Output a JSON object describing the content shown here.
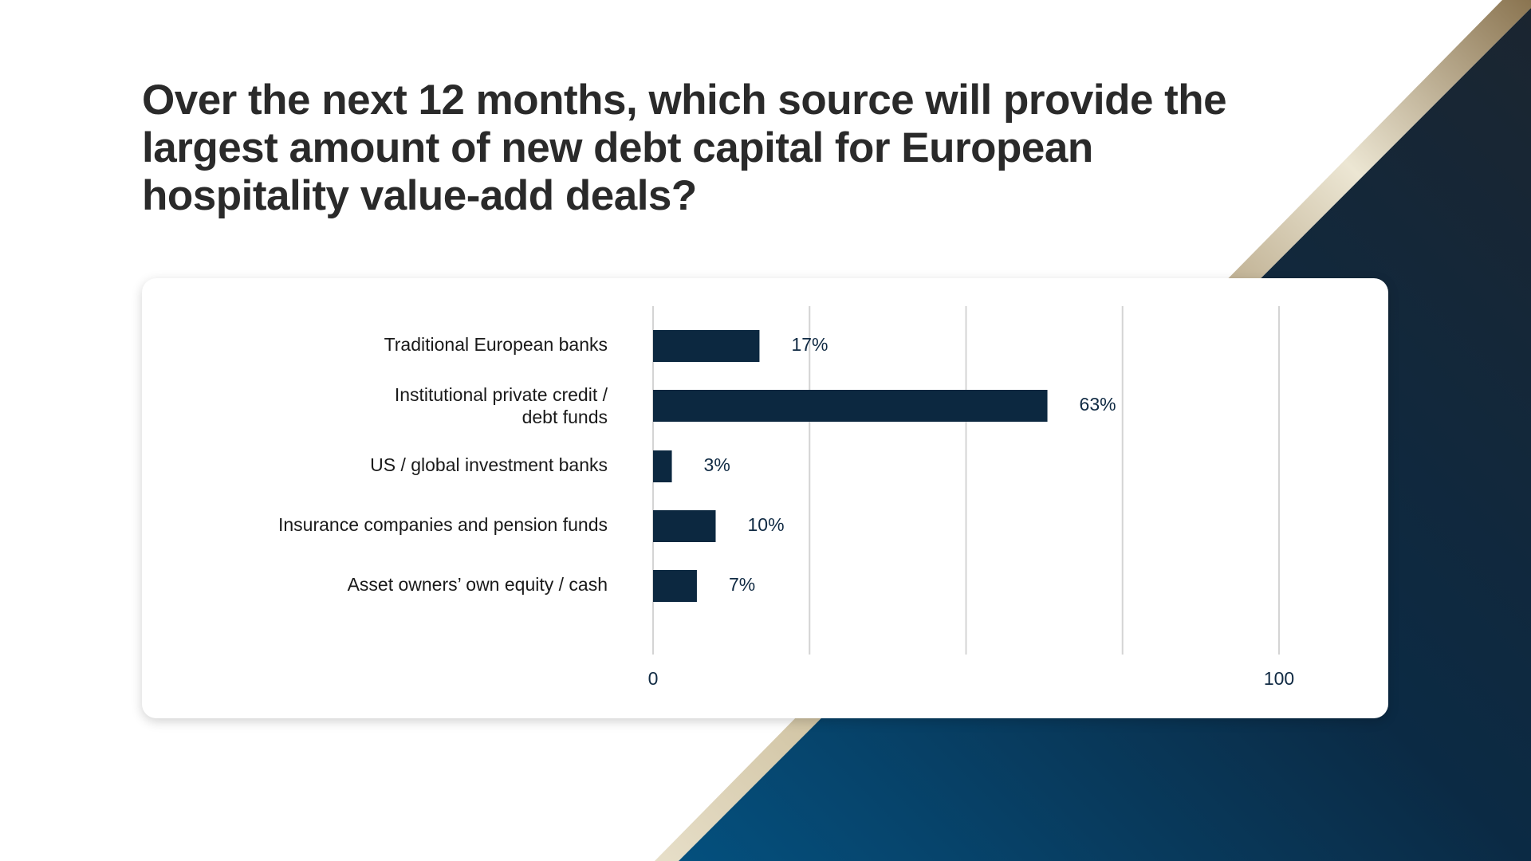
{
  "title": "Over the next 12 months, which source will provide the largest amount of new debt capital for European hospitality value-add deals?",
  "colors": {
    "bar": "#0c2840",
    "title": "#2a2a2a",
    "gridline": "#d4d4d4",
    "background_dark": "#0b2a44",
    "gold_stripe": "#b7a47c"
  },
  "chart_data": {
    "type": "bar",
    "orientation": "horizontal",
    "categories": [
      "Traditional European banks",
      "Institutional private credit / debt funds",
      "US / global investment banks",
      "Insurance companies and pension funds",
      "Asset owners’ own equity / cash"
    ],
    "values": [
      17,
      63,
      3,
      10,
      7
    ],
    "value_labels": [
      "17%",
      "63%",
      "3%",
      "10%",
      "7%"
    ],
    "xlim": [
      0,
      100
    ],
    "x_tick_labels": [
      "0",
      "100"
    ],
    "grid": true,
    "legend": "none"
  }
}
